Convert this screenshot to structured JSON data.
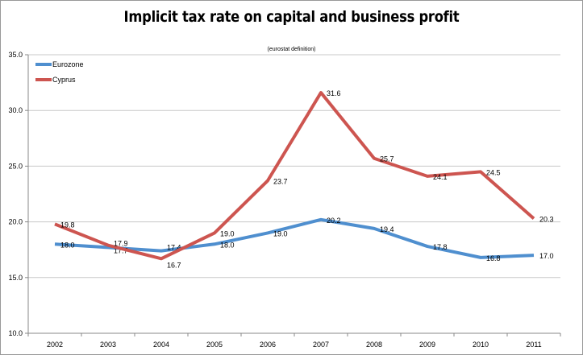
{
  "chart_data": {
    "type": "line",
    "title": "Implicit tax rate on capital and business profit",
    "subtitle": "(eurostat definition)",
    "xlabel": "",
    "ylabel": "",
    "categories": [
      "2002",
      "2003",
      "2004",
      "2005",
      "2006",
      "2007",
      "2008",
      "2009",
      "2010",
      "2011"
    ],
    "ylim": [
      10,
      35
    ],
    "yticks": [
      "10.0",
      "15.0",
      "20.0",
      "25.0",
      "30.0",
      "35.0"
    ],
    "grid": true,
    "legend": "top-left",
    "series": [
      {
        "name": "Eurozone",
        "color": "#4f8fcf",
        "values": [
          18.0,
          17.7,
          17.4,
          18.0,
          19.0,
          20.2,
          19.4,
          17.8,
          16.8,
          17.0
        ]
      },
      {
        "name": "Cyprus",
        "color": "#cd5550",
        "values": [
          19.8,
          17.9,
          16.7,
          19.0,
          23.7,
          31.6,
          25.7,
          24.1,
          24.5,
          20.3
        ]
      }
    ]
  }
}
